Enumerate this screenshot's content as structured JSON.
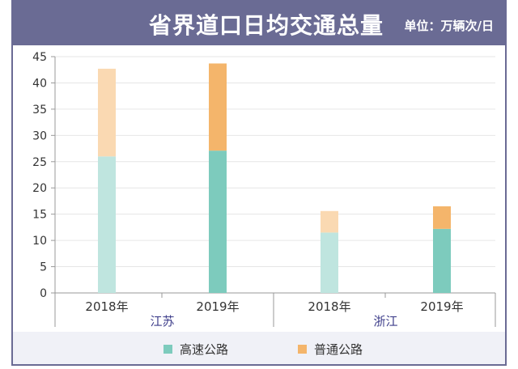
{
  "header": {
    "title": "省界道口日均交通总量",
    "unit": "单位：万辆次/日"
  },
  "colors": {
    "header_bg": "#6a6b94",
    "expressway_2018": "#bfe5df",
    "expressway_2019": "#7dcbbd",
    "ordinary_2018": "#fad9b2",
    "ordinary_2019": "#f4b56b",
    "legend_bg": "#f0f1f7",
    "group_label": "#3d3d8a"
  },
  "chart_data": {
    "type": "bar",
    "stacked": true,
    "groups": [
      {
        "name": "江苏",
        "categories": [
          "2018年",
          "2019年"
        ]
      },
      {
        "name": "浙江",
        "categories": [
          "2018年",
          "2019年"
        ]
      }
    ],
    "categories": [
      "2018年",
      "2019年",
      "2018年",
      "2019年"
    ],
    "series": [
      {
        "name": "高速公路",
        "values": [
          26,
          27.1,
          11.5,
          12.2
        ]
      },
      {
        "name": "普通公路",
        "values": [
          16.7,
          16.6,
          4.1,
          4.3
        ]
      }
    ],
    "ylim": [
      0,
      45
    ],
    "yticks": [
      0,
      5,
      10,
      15,
      20,
      25,
      30,
      35,
      40,
      45
    ],
    "grid": true,
    "legend_position": "bottom"
  }
}
